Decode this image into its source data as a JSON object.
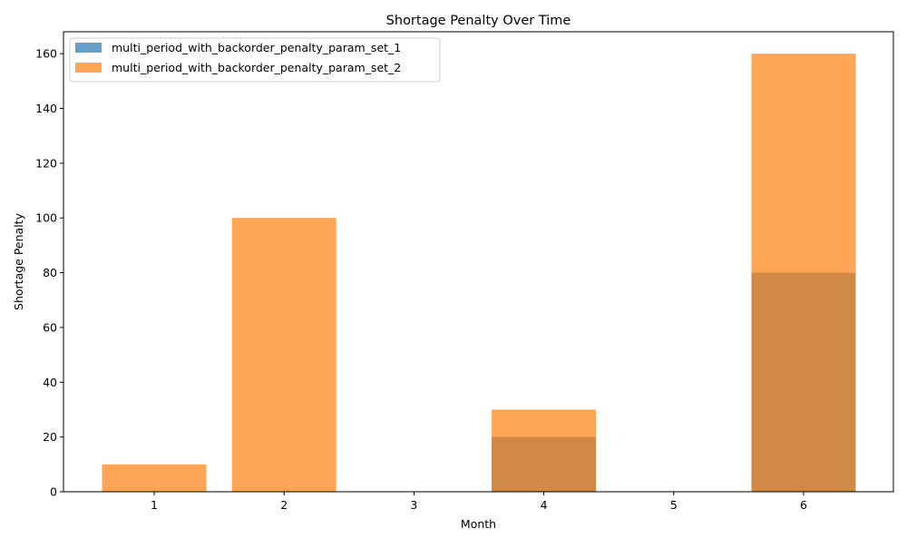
{
  "chart_data": {
    "type": "bar",
    "title": "Shortage Penalty Over Time",
    "xlabel": "Month",
    "ylabel": "Shortage Penalty",
    "categories": [
      "1",
      "2",
      "3",
      "4",
      "5",
      "6"
    ],
    "series": [
      {
        "name": "multi_period_with_backorder_penalty_param_set_1",
        "values": [
          0,
          0,
          0,
          20,
          0,
          80
        ],
        "color": "#1f77b4",
        "opacity": 0.7
      },
      {
        "name": "multi_period_with_backorder_penalty_param_set_2",
        "values": [
          10,
          100,
          0,
          30,
          0,
          160
        ],
        "color": "#ff7f0e",
        "opacity": 0.7
      }
    ],
    "ylim": [
      0,
      168
    ],
    "yticks": [
      0,
      20,
      40,
      60,
      80,
      100,
      120,
      140,
      160
    ],
    "grid": false,
    "legend_position": "top-left",
    "bars_overlaid": true
  }
}
